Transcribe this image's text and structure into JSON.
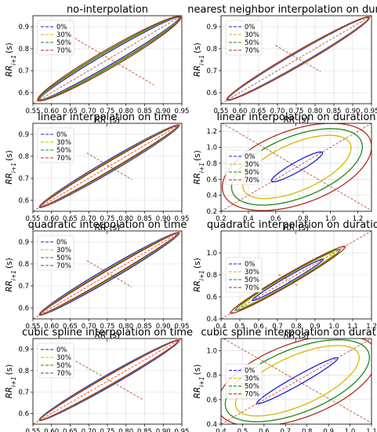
{
  "colors": {
    "p0": "#1f1fd6",
    "p30": "#d6b800",
    "p50": "#1a8a1a",
    "p70": "#b03020",
    "identity": "#c05030",
    "minor": "#555555",
    "grid": "#d8d8d8"
  },
  "legend_labels": [
    "0%",
    "30%",
    "50%",
    "70%"
  ],
  "chart_data": [
    {
      "type": "line",
      "title": "no-interpolation",
      "xlabel": "RR_i (s)",
      "ylabel": "RR_i+1 (s)",
      "xlim": [
        0.55,
        0.95
      ],
      "ylim": [
        0.55,
        0.95
      ],
      "xticks": [
        "0.55",
        "0.60",
        "0.65",
        "0.70",
        "0.75",
        "0.80",
        "0.85",
        "0.90",
        "0.95"
      ],
      "xtick_values": [
        0.55,
        0.6,
        0.65,
        0.7,
        0.75,
        0.8,
        0.85,
        0.9,
        0.95
      ],
      "yticks": [
        "0.6",
        "0.7",
        "0.8",
        "0.9"
      ],
      "ytick_values": [
        0.6,
        0.7,
        0.8,
        0.9
      ],
      "legend_position": "upper-left",
      "center": [
        0.755,
        0.755
      ],
      "series": [
        {
          "name": "0%",
          "major": 0.265,
          "minor": 0.022
        },
        {
          "name": "30%",
          "major": 0.267,
          "minor": 0.026
        },
        {
          "name": "50%",
          "major": 0.268,
          "minor": 0.029
        },
        {
          "name": "70%",
          "major": 0.27,
          "minor": 0.034
        }
      ],
      "minor_axis_half": 0.12
    },
    {
      "type": "line",
      "title": "nearest neighbor interpolation on duration",
      "xlabel": "RR_i (s)",
      "ylabel": "RR_i+1 (s)",
      "xlim": [
        0.55,
        0.95
      ],
      "ylim": [
        0.55,
        0.95
      ],
      "xticks": [
        "0.55",
        "0.60",
        "0.65",
        "0.70",
        "0.75",
        "0.80",
        "0.85",
        "0.90",
        "0.95"
      ],
      "xtick_values": [
        0.55,
        0.6,
        0.65,
        0.7,
        0.75,
        0.8,
        0.85,
        0.9,
        0.95
      ],
      "yticks": [
        "0.6",
        "0.7",
        "0.8",
        "0.9"
      ],
      "ytick_values": [
        0.6,
        0.7,
        0.8,
        0.9
      ],
      "legend_position": "upper-left",
      "center": [
        0.755,
        0.755
      ],
      "series": [
        {
          "name": "0%",
          "major": 0.265,
          "minor": 0.022
        },
        {
          "name": "30%",
          "major": 0.266,
          "minor": 0.024
        },
        {
          "name": "50%",
          "major": 0.266,
          "minor": 0.025
        },
        {
          "name": "70%",
          "major": 0.267,
          "minor": 0.026
        }
      ],
      "minor_axis_half": 0.06
    },
    {
      "type": "line",
      "title": "linear interpolation on time",
      "xlabel": "RR_i (s)",
      "ylabel": "RR_i+1 (s)",
      "xlim": [
        0.55,
        0.95
      ],
      "ylim": [
        0.55,
        0.95
      ],
      "xticks": [
        "0.55",
        "0.60",
        "0.65",
        "0.70",
        "0.75",
        "0.80",
        "0.85",
        "0.90",
        "0.95"
      ],
      "xtick_values": [
        0.55,
        0.6,
        0.65,
        0.7,
        0.75,
        0.8,
        0.85,
        0.9,
        0.95
      ],
      "yticks": [
        "0.6",
        "0.7",
        "0.8",
        "0.9"
      ],
      "ytick_values": [
        0.6,
        0.7,
        0.8,
        0.9
      ],
      "legend_position": "upper-left",
      "center": [
        0.755,
        0.755
      ],
      "series": [
        {
          "name": "0%",
          "major": 0.265,
          "minor": 0.022
        },
        {
          "name": "30%",
          "major": 0.264,
          "minor": 0.019
        },
        {
          "name": "50%",
          "major": 0.263,
          "minor": 0.017
        },
        {
          "name": "70%",
          "major": 0.262,
          "minor": 0.015
        }
      ],
      "minor_axis_half": 0.06
    },
    {
      "type": "line",
      "title": "linear interpolation on duration",
      "xlabel": "RR_i (s)",
      "ylabel": "RR_i+1 (s)",
      "xlim": [
        0.2,
        1.3
      ],
      "ylim": [
        0.2,
        1.3
      ],
      "xticks": [
        "0.2",
        "0.4",
        "0.6",
        "0.8",
        "1.0",
        "1.2"
      ],
      "xtick_values": [
        0.2,
        0.4,
        0.6,
        0.8,
        1.0,
        1.2
      ],
      "yticks": [
        "0.2",
        "0.4",
        "0.6",
        "0.8",
        "1.0",
        "1.2"
      ],
      "ytick_values": [
        0.2,
        0.4,
        0.6,
        0.8,
        1.0,
        1.2
      ],
      "legend_position": "center-left",
      "center": [
        0.755,
        0.755
      ],
      "series": [
        {
          "name": "0%",
          "major": 0.26,
          "minor": 0.05
        },
        {
          "name": "30%",
          "major": 0.5,
          "minor": 0.25
        },
        {
          "name": "50%",
          "major": 0.59,
          "minor": 0.33
        },
        {
          "name": "70%",
          "major": 0.66,
          "minor": 0.4
        }
      ],
      "minor_axis_half": 0.72
    },
    {
      "type": "line",
      "title": "quadratic interpolation on time",
      "xlabel": "RR_i (s)",
      "ylabel": "RR_i+1 (s)",
      "xlim": [
        0.55,
        0.95
      ],
      "ylim": [
        0.55,
        0.95
      ],
      "xticks": [
        "0.55",
        "0.60",
        "0.65",
        "0.70",
        "0.75",
        "0.80",
        "0.85",
        "0.90",
        "0.95"
      ],
      "xtick_values": [
        0.55,
        0.6,
        0.65,
        0.7,
        0.75,
        0.8,
        0.85,
        0.9,
        0.95
      ],
      "yticks": [
        "0.6",
        "0.7",
        "0.8",
        "0.9"
      ],
      "ytick_values": [
        0.6,
        0.7,
        0.8,
        0.9
      ],
      "legend_position": "upper-left",
      "center": [
        0.755,
        0.755
      ],
      "series": [
        {
          "name": "0%",
          "major": 0.265,
          "minor": 0.022
        },
        {
          "name": "30%",
          "major": 0.265,
          "minor": 0.018
        },
        {
          "name": "50%",
          "major": 0.264,
          "minor": 0.016
        },
        {
          "name": "70%",
          "major": 0.264,
          "minor": 0.014
        }
      ],
      "minor_axis_half": 0.06
    },
    {
      "type": "line",
      "title": "quadratic interpolation on duration",
      "xlabel": "RR_i (s)",
      "ylabel": "RR_i+1 (s)",
      "xlim": [
        0.4,
        1.2
      ],
      "ylim": [
        0.4,
        1.2
      ],
      "xticks": [
        "0.4",
        "0.5",
        "0.6",
        "0.7",
        "0.8",
        "0.9",
        "1.0",
        "1.1",
        "1.2"
      ],
      "xtick_values": [
        0.4,
        0.5,
        0.6,
        0.7,
        0.8,
        0.9,
        1.0,
        1.1,
        1.2
      ],
      "yticks": [
        "0.4",
        "0.6",
        "0.8",
        "1.0"
      ],
      "ytick_values": [
        0.4,
        0.6,
        0.8,
        1.0
      ],
      "legend_position": "center-left",
      "center": [
        0.755,
        0.755
      ],
      "series": [
        {
          "name": "0%",
          "major": 0.265,
          "minor": 0.022
        },
        {
          "name": "30%",
          "major": 0.35,
          "minor": 0.03
        },
        {
          "name": "50%",
          "major": 0.39,
          "minor": 0.035
        },
        {
          "name": "70%",
          "major": 0.43,
          "minor": 0.04
        }
      ],
      "minor_axis_half": 0.05
    },
    {
      "type": "line",
      "title": "cubic spline interpolation on time",
      "xlabel": "RR_i (s)",
      "ylabel": "RR_i+1 (s)",
      "xlim": [
        0.55,
        0.95
      ],
      "ylim": [
        0.55,
        0.95
      ],
      "xticks": [
        "0.55",
        "0.60",
        "0.65",
        "0.70",
        "0.75",
        "0.80",
        "0.85",
        "0.90",
        "0.95"
      ],
      "xtick_values": [
        0.55,
        0.6,
        0.65,
        0.7,
        0.75,
        0.8,
        0.85,
        0.9,
        0.95
      ],
      "yticks": [
        "0.6",
        "0.7",
        "0.8",
        "0.9"
      ],
      "ytick_values": [
        0.6,
        0.7,
        0.8,
        0.9
      ],
      "legend_position": "upper-left",
      "center": [
        0.755,
        0.755
      ],
      "series": [
        {
          "name": "0%",
          "major": 0.265,
          "minor": 0.022
        },
        {
          "name": "30%",
          "major": 0.265,
          "minor": 0.019
        },
        {
          "name": "50%",
          "major": 0.264,
          "minor": 0.018
        },
        {
          "name": "70%",
          "major": 0.264,
          "minor": 0.017
        }
      ],
      "minor_axis_half": 0.09
    },
    {
      "type": "line",
      "title": "cubic spline interpolation on duration",
      "xlabel": "RR_i (s)",
      "ylabel": "RR_i+1 (s)",
      "xlim": [
        0.4,
        1.1
      ],
      "ylim": [
        0.4,
        1.1
      ],
      "xticks": [
        "0.4",
        "0.5",
        "0.6",
        "0.7",
        "0.8",
        "0.9",
        "1.0",
        "1.1"
      ],
      "xtick_values": [
        0.4,
        0.5,
        0.6,
        0.7,
        0.8,
        0.9,
        1.0,
        1.1
      ],
      "yticks": [
        "0.4",
        "0.6",
        "0.8",
        "1.0"
      ],
      "ytick_values": [
        0.4,
        0.6,
        0.8,
        1.0
      ],
      "legend_position": "center-left",
      "center": [
        0.755,
        0.755
      ],
      "series": [
        {
          "name": "0%",
          "major": 0.265,
          "minor": 0.03
        },
        {
          "name": "30%",
          "major": 0.37,
          "minor": 0.17
        },
        {
          "name": "50%",
          "major": 0.42,
          "minor": 0.22
        },
        {
          "name": "70%",
          "major": 0.46,
          "minor": 0.26
        }
      ],
      "minor_axis_half": 0.5
    }
  ]
}
